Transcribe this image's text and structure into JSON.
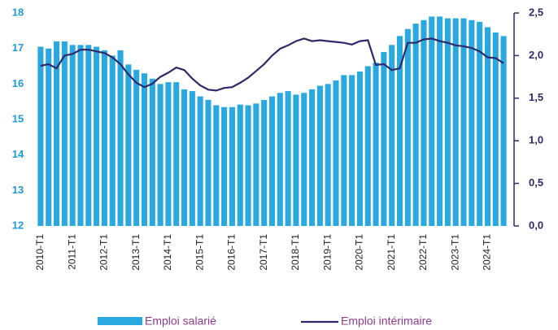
{
  "chart_data": {
    "type": "bar-line",
    "categories": [
      "2010-T1",
      null,
      null,
      null,
      "2011-T1",
      null,
      null,
      null,
      "2012-T1",
      null,
      null,
      null,
      "2013-T1",
      null,
      null,
      null,
      "2014-T1",
      null,
      null,
      null,
      "2015-T1",
      null,
      null,
      null,
      "2016-T1",
      null,
      null,
      null,
      "2017-T1",
      null,
      null,
      null,
      "2018-T1",
      null,
      null,
      null,
      "2019-T1",
      null,
      null,
      null,
      "2020-T1",
      null,
      null,
      null,
      "2021-T1",
      null,
      null,
      null,
      "2022-T1",
      null,
      null,
      null,
      "2023-T1",
      null,
      null,
      null,
      "2024-T1",
      null,
      null
    ],
    "series": [
      {
        "name": "Emploi salarié",
        "color": "#2aa8e0",
        "values": [
          17.05,
          17.0,
          17.2,
          17.2,
          17.1,
          17.1,
          17.1,
          17.05,
          16.95,
          16.8,
          16.95,
          16.55,
          16.4,
          16.3,
          16.15,
          16.0,
          16.05,
          16.05,
          15.85,
          15.8,
          15.65,
          15.55,
          15.4,
          15.35,
          15.35,
          15.42,
          15.4,
          15.45,
          15.55,
          15.65,
          15.75,
          15.8,
          15.7,
          15.75,
          15.85,
          15.95,
          16.0,
          16.1,
          16.25,
          16.25,
          16.35,
          16.5,
          16.6,
          16.9,
          17.1,
          17.35,
          17.55,
          17.7,
          17.8,
          17.9,
          17.9,
          17.85,
          17.85,
          17.85,
          17.8,
          17.75,
          17.6,
          17.45,
          17.35
        ]
      },
      {
        "name": "Emploi intérimaire",
        "color": "#2e2a6b",
        "axis": "y2",
        "values": [
          1.88,
          1.9,
          1.85,
          2.0,
          2.02,
          2.07,
          2.07,
          2.05,
          2.03,
          1.98,
          1.9,
          1.78,
          1.68,
          1.63,
          1.67,
          1.75,
          1.8,
          1.86,
          1.83,
          1.73,
          1.65,
          1.6,
          1.59,
          1.62,
          1.63,
          1.68,
          1.74,
          1.82,
          1.9,
          2.0,
          2.08,
          2.12,
          2.17,
          2.2,
          2.17,
          2.18,
          2.17,
          2.16,
          2.15,
          2.13,
          2.17,
          2.18,
          1.89,
          1.9,
          1.83,
          1.85,
          2.15,
          2.15,
          2.19,
          2.2,
          2.17,
          2.15,
          2.12,
          2.11,
          2.09,
          2.05,
          1.98,
          1.97,
          1.91
        ]
      }
    ],
    "ylim": [
      12,
      18
    ],
    "yticks": [
      12,
      13,
      14,
      15,
      16,
      17,
      18
    ],
    "y2lim": [
      0,
      2.5
    ],
    "y2ticks": [
      {
        "value": 0,
        "label": "0,0"
      },
      {
        "value": 0.5,
        "label": "0,5"
      },
      {
        "value": 1,
        "label": "1,0"
      },
      {
        "value": 1.5,
        "label": "1,5"
      },
      {
        "value": 2,
        "label": "2,0"
      },
      {
        "value": 2.5,
        "label": "2,5"
      }
    ],
    "legend": "bottom"
  }
}
